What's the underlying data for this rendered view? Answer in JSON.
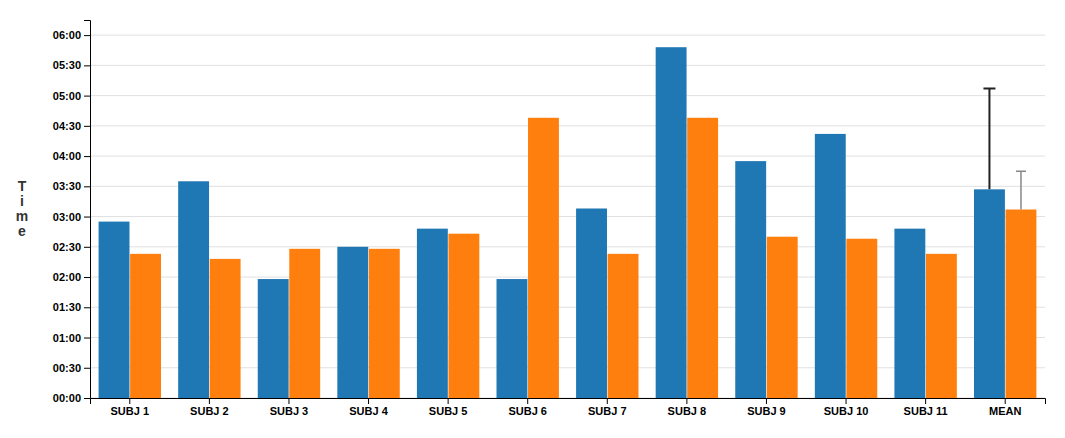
{
  "chart_data": {
    "type": "bar",
    "y_label": "Time",
    "categories": [
      "SUBJ 1",
      "SUBJ 2",
      "SUBJ 3",
      "SUBJ 4",
      "SUBJ 5",
      "SUBJ 6",
      "SUBJ 7",
      "SUBJ 8",
      "SUBJ 9",
      "SUBJ 10",
      "SUBJ 11",
      "MEAN"
    ],
    "series": [
      {
        "values": [
          175,
          215,
          118,
          150,
          168,
          118,
          188,
          348,
          235,
          262,
          168,
          207
        ],
        "errors": [
          null,
          null,
          null,
          null,
          null,
          null,
          null,
          null,
          null,
          null,
          null,
          100
        ]
      },
      {
        "values": [
          143,
          138,
          148,
          148,
          163,
          278,
          143,
          278,
          160,
          158,
          143,
          187
        ],
        "errors": [
          null,
          null,
          null,
          null,
          null,
          null,
          null,
          null,
          null,
          null,
          null,
          38
        ]
      }
    ],
    "ylim": [
      0,
      375
    ],
    "yticks": [
      {
        "value": 0,
        "label": "00:00"
      },
      {
        "value": 30,
        "label": "00:30"
      },
      {
        "value": 60,
        "label": "01:00"
      },
      {
        "value": 90,
        "label": "01:30"
      },
      {
        "value": 120,
        "label": "02:00"
      },
      {
        "value": 150,
        "label": "02:30"
      },
      {
        "value": 180,
        "label": "03:00"
      },
      {
        "value": 210,
        "label": "03:30"
      },
      {
        "value": 240,
        "label": "04:00"
      },
      {
        "value": 270,
        "label": "04:30"
      },
      {
        "value": 300,
        "label": "05:00"
      },
      {
        "value": 330,
        "label": "05:30"
      },
      {
        "value": 360,
        "label": "06:00"
      }
    ],
    "grid": true
  }
}
